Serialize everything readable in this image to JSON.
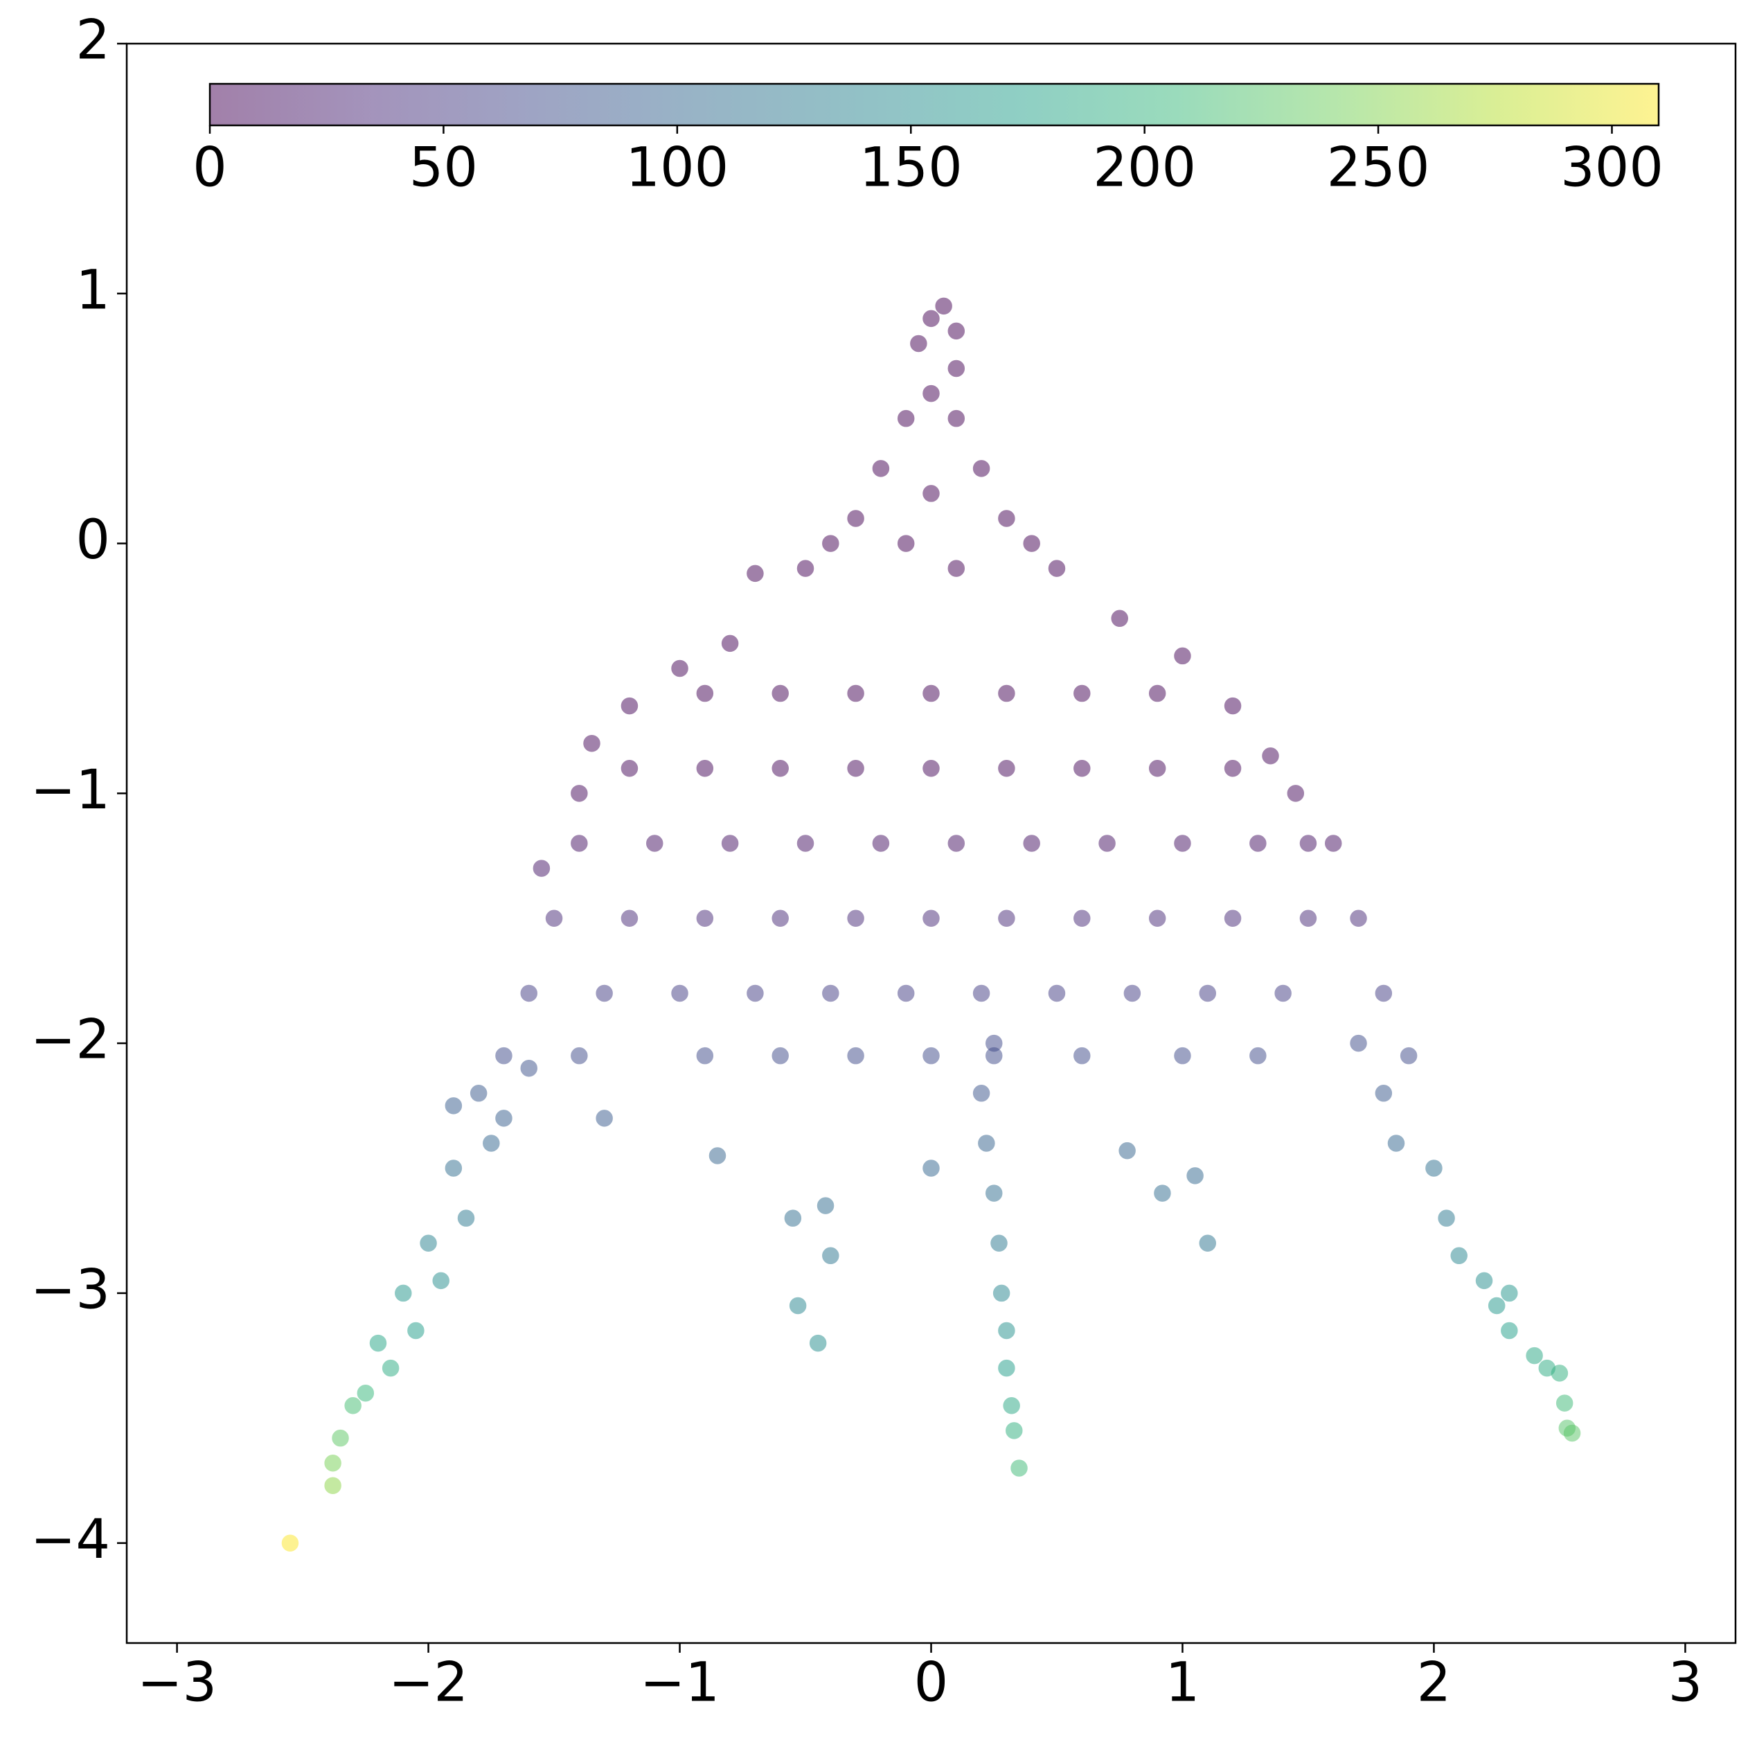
{
  "chart_data": {
    "type": "scatter",
    "x": [
      0,
      0.05,
      0.1,
      -0.05,
      0.1,
      0,
      -0.1,
      0.1,
      -0.2,
      0.2,
      -0.3,
      0,
      0.3,
      -0.4,
      0.4,
      -0.5,
      0.5,
      -0.7,
      -0.1,
      0.1,
      -1,
      -1.2,
      -0.8,
      -1.35,
      -1.4,
      1,
      1.2,
      0.75,
      1.35,
      1.45,
      1.6,
      -1.55,
      -0.9,
      -0.6,
      -0.3,
      0,
      0.3,
      0.6,
      0.9,
      -1.2,
      -0.9,
      -0.6,
      -0.3,
      0,
      0.3,
      0.6,
      0.9,
      1.2,
      -1.4,
      -1.1,
      -0.8,
      -0.5,
      -0.2,
      0.1,
      0.4,
      0.7,
      1,
      1.3,
      1.5,
      -1.5,
      -1.2,
      -0.9,
      -0.6,
      -0.3,
      0,
      0.3,
      0.6,
      0.9,
      1.2,
      1.5,
      1.7,
      -1.6,
      -1.3,
      -1,
      -0.7,
      -0.4,
      -0.1,
      0.2,
      0.5,
      0.8,
      1.1,
      1.4,
      1.8,
      -1.7,
      -1.4,
      -0.9,
      -0.6,
      -0.3,
      0,
      0.25,
      0.6,
      1,
      1.3,
      1.9,
      -1.8,
      -1.75,
      -1.9,
      -1.85,
      -2,
      -1.95,
      -2.1,
      -2.05,
      -2.2,
      -2.15,
      -2.25,
      -2.3,
      -2.35,
      -2.38,
      -2.38,
      -2.55,
      -1.7,
      -1.6,
      -1.9,
      1.8,
      1.85,
      2,
      2.05,
      2.1,
      2.2,
      2.25,
      2.3,
      2.4,
      2.45,
      2.5,
      2.52,
      2.53,
      2.55,
      1.7,
      2.3,
      0.2,
      0.22,
      0.25,
      0.27,
      0.28,
      0.3,
      0.3,
      0.32,
      0.33,
      0.35,
      0.25,
      -0.45,
      -0.53,
      -0.4,
      -0.42,
      -0.55,
      -1.3,
      -0.85,
      0,
      0.92,
      1.1,
      0.78,
      1.05
    ],
    "y": [
      0.9,
      0.95,
      0.85,
      0.8,
      0.7,
      0.6,
      0.5,
      0.5,
      0.3,
      0.3,
      0.1,
      0.2,
      0.1,
      0,
      0,
      -0.1,
      -0.1,
      -0.12,
      0,
      -0.1,
      -0.5,
      -0.65,
      -0.4,
      -0.8,
      -1,
      -0.45,
      -0.65,
      -0.3,
      -0.85,
      -1,
      -1.2,
      -1.3,
      -0.6,
      -0.6,
      -0.6,
      -0.6,
      -0.6,
      -0.6,
      -0.6,
      -0.9,
      -0.9,
      -0.9,
      -0.9,
      -0.9,
      -0.9,
      -0.9,
      -0.9,
      -0.9,
      -1.2,
      -1.2,
      -1.2,
      -1.2,
      -1.2,
      -1.2,
      -1.2,
      -1.2,
      -1.2,
      -1.2,
      -1.2,
      -1.5,
      -1.5,
      -1.5,
      -1.5,
      -1.5,
      -1.5,
      -1.5,
      -1.5,
      -1.5,
      -1.5,
      -1.5,
      -1.5,
      -1.8,
      -1.8,
      -1.8,
      -1.8,
      -1.8,
      -1.8,
      -1.8,
      -1.8,
      -1.8,
      -1.8,
      -1.8,
      -1.8,
      -2.05,
      -2.05,
      -2.05,
      -2.05,
      -2.05,
      -2.05,
      -2.05,
      -2.05,
      -2.05,
      -2.05,
      -2.05,
      -2.2,
      -2.4,
      -2.5,
      -2.7,
      -2.8,
      -2.95,
      -3,
      -3.15,
      -3.2,
      -3.3,
      -3.4,
      -3.45,
      -3.58,
      -3.68,
      -3.77,
      -4,
      -2.3,
      -2.1,
      -2.25,
      -2.2,
      -2.4,
      -2.5,
      -2.7,
      -2.85,
      -2.95,
      -3.05,
      -3.15,
      -3.25,
      -3.3,
      -3.32,
      -3.44,
      -3.54,
      -3.56,
      -2,
      -3,
      -2.2,
      -2.4,
      -2.6,
      -2.8,
      -3,
      -3.15,
      -3.3,
      -3.45,
      -3.55,
      -3.7,
      -2,
      -3.2,
      -3.05,
      -2.85,
      -2.65,
      -2.7,
      -2.3,
      -2.45,
      -2.5,
      -2.6,
      -2.8,
      -2.43,
      -2.53
    ],
    "c": [
      0,
      0,
      0,
      0,
      0,
      0,
      0,
      0,
      0,
      0,
      0,
      0,
      0,
      0,
      0,
      1,
      1,
      2,
      0,
      0,
      2,
      3,
      1,
      5,
      8,
      2,
      3,
      1,
      6,
      8,
      12,
      18,
      2,
      2,
      2,
      2,
      2,
      2,
      2,
      6,
      6,
      6,
      6,
      6,
      6,
      6,
      6,
      6,
      15,
      15,
      15,
      15,
      15,
      15,
      15,
      15,
      15,
      15,
      15,
      35,
      35,
      35,
      35,
      35,
      35,
      35,
      35,
      35,
      35,
      35,
      35,
      55,
      55,
      55,
      55,
      55,
      55,
      55,
      55,
      55,
      55,
      55,
      55,
      70,
      70,
      70,
      70,
      70,
      70,
      70,
      70,
      70,
      70,
      70,
      85,
      100,
      110,
      125,
      135,
      150,
      160,
      170,
      180,
      190,
      205,
      215,
      230,
      245,
      255,
      310,
      92,
      78,
      90,
      85,
      100,
      112,
      125,
      140,
      150,
      162,
      172,
      185,
      190,
      195,
      210,
      225,
      228,
      72,
      160,
      80,
      95,
      110,
      125,
      140,
      155,
      170,
      185,
      195,
      210,
      68,
      150,
      140,
      120,
      108,
      110,
      88,
      98,
      100,
      108,
      118,
      98,
      102
    ],
    "xlim": [
      -3.2,
      3.2
    ],
    "ylim": [
      -4.4,
      2
    ],
    "xticks": [
      {
        "value": -3,
        "label": "−3"
      },
      {
        "value": -2,
        "label": "−2"
      },
      {
        "value": -1,
        "label": "−1"
      },
      0,
      1,
      2,
      3
    ],
    "yticks": [
      {
        "value": -4,
        "label": "−4"
      },
      {
        "value": -3,
        "label": "−3"
      },
      {
        "value": -2,
        "label": "−2"
      },
      {
        "value": -1,
        "label": "−1"
      },
      0,
      1,
      2
    ],
    "colormap": "viridis",
    "alpha": 0.5,
    "colorbar": {
      "orientation": "horizontal",
      "location": "top",
      "lim": [
        0,
        310
      ],
      "ticks": [
        0,
        50,
        100,
        150,
        200,
        250,
        300
      ]
    }
  }
}
